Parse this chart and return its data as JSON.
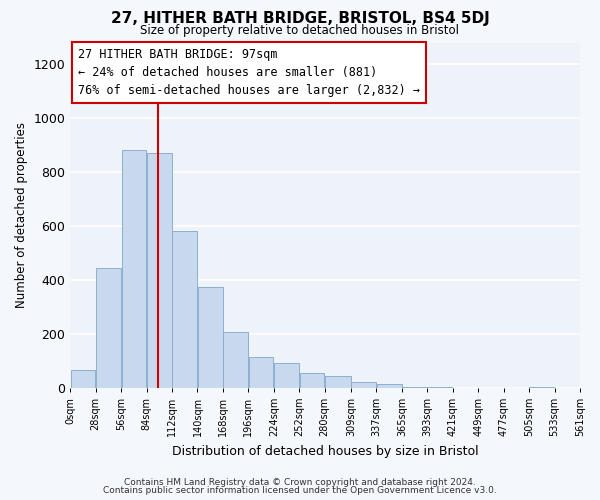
{
  "title": "27, HITHER BATH BRIDGE, BRISTOL, BS4 5DJ",
  "subtitle": "Size of property relative to detached houses in Bristol",
  "xlabel": "Distribution of detached houses by size in Bristol",
  "ylabel": "Number of detached properties",
  "footer_line1": "Contains HM Land Registry data © Crown copyright and database right 2024.",
  "footer_line2": "Contains public sector information licensed under the Open Government Licence v3.0.",
  "annotation_line1": "27 HITHER BATH BRIDGE: 97sqm",
  "annotation_line2": "← 24% of detached houses are smaller (881)",
  "annotation_line3": "76% of semi-detached houses are larger (2,832) →",
  "bar_color": "#c8d9ed",
  "bar_edge_color": "#8ab0d0",
  "vline_x": 97,
  "vline_color": "#cc0000",
  "bin_edges": [
    0,
    28,
    56,
    84,
    112,
    140,
    168,
    196,
    224,
    252,
    280,
    309,
    337,
    365,
    393,
    421,
    449,
    477,
    505,
    533,
    561
  ],
  "bar_heights": [
    65,
    445,
    880,
    870,
    580,
    375,
    205,
    115,
    90,
    55,
    45,
    20,
    15,
    3,
    1,
    0,
    0,
    0,
    1,
    0
  ],
  "ylim": [
    0,
    1280
  ],
  "yticks": [
    0,
    200,
    400,
    600,
    800,
    1000,
    1200
  ],
  "background_color": "#f4f7fc",
  "plot_bg_color": "#eef2f9",
  "annotation_box_edge_color": "#cc0000",
  "grid_color": "#ffffff",
  "tick_labels": [
    "0sqm",
    "28sqm",
    "56sqm",
    "84sqm",
    "112sqm",
    "140sqm",
    "168sqm",
    "196sqm",
    "224sqm",
    "252sqm",
    "280sqm",
    "309sqm",
    "337sqm",
    "365sqm",
    "393sqm",
    "421sqm",
    "449sqm",
    "477sqm",
    "505sqm",
    "533sqm",
    "561sqm"
  ]
}
